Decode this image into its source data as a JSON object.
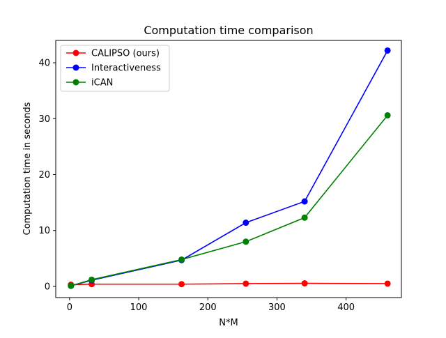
{
  "chart_data": {
    "type": "line",
    "title": "Computation time comparison",
    "xlabel": "N*M",
    "ylabel": "Computation time in seconds",
    "xlim": [
      -20,
      480
    ],
    "ylim": [
      -2,
      44
    ],
    "xticks": [
      0,
      100,
      200,
      300,
      400
    ],
    "yticks": [
      0,
      10,
      20,
      30,
      40
    ],
    "grid": false,
    "legend_position": "upper-left",
    "series": [
      {
        "name": "CALIPSO (ours)",
        "color": "#ff0000",
        "x": [
          2,
          32,
          162,
          255,
          340,
          460
        ],
        "y": [
          0.3,
          0.4,
          0.4,
          0.5,
          0.55,
          0.5
        ]
      },
      {
        "name": "Interactiveness",
        "color": "#0000ff",
        "x": [
          2,
          32,
          162,
          255,
          340,
          460
        ],
        "y": [
          0.1,
          1.1,
          4.7,
          11.4,
          15.2,
          42.2
        ]
      },
      {
        "name": "iCAN",
        "color": "#008000",
        "x": [
          2,
          32,
          162,
          255,
          340,
          460
        ],
        "y": [
          0.1,
          1.2,
          4.8,
          8.0,
          12.3,
          30.6
        ]
      }
    ]
  }
}
